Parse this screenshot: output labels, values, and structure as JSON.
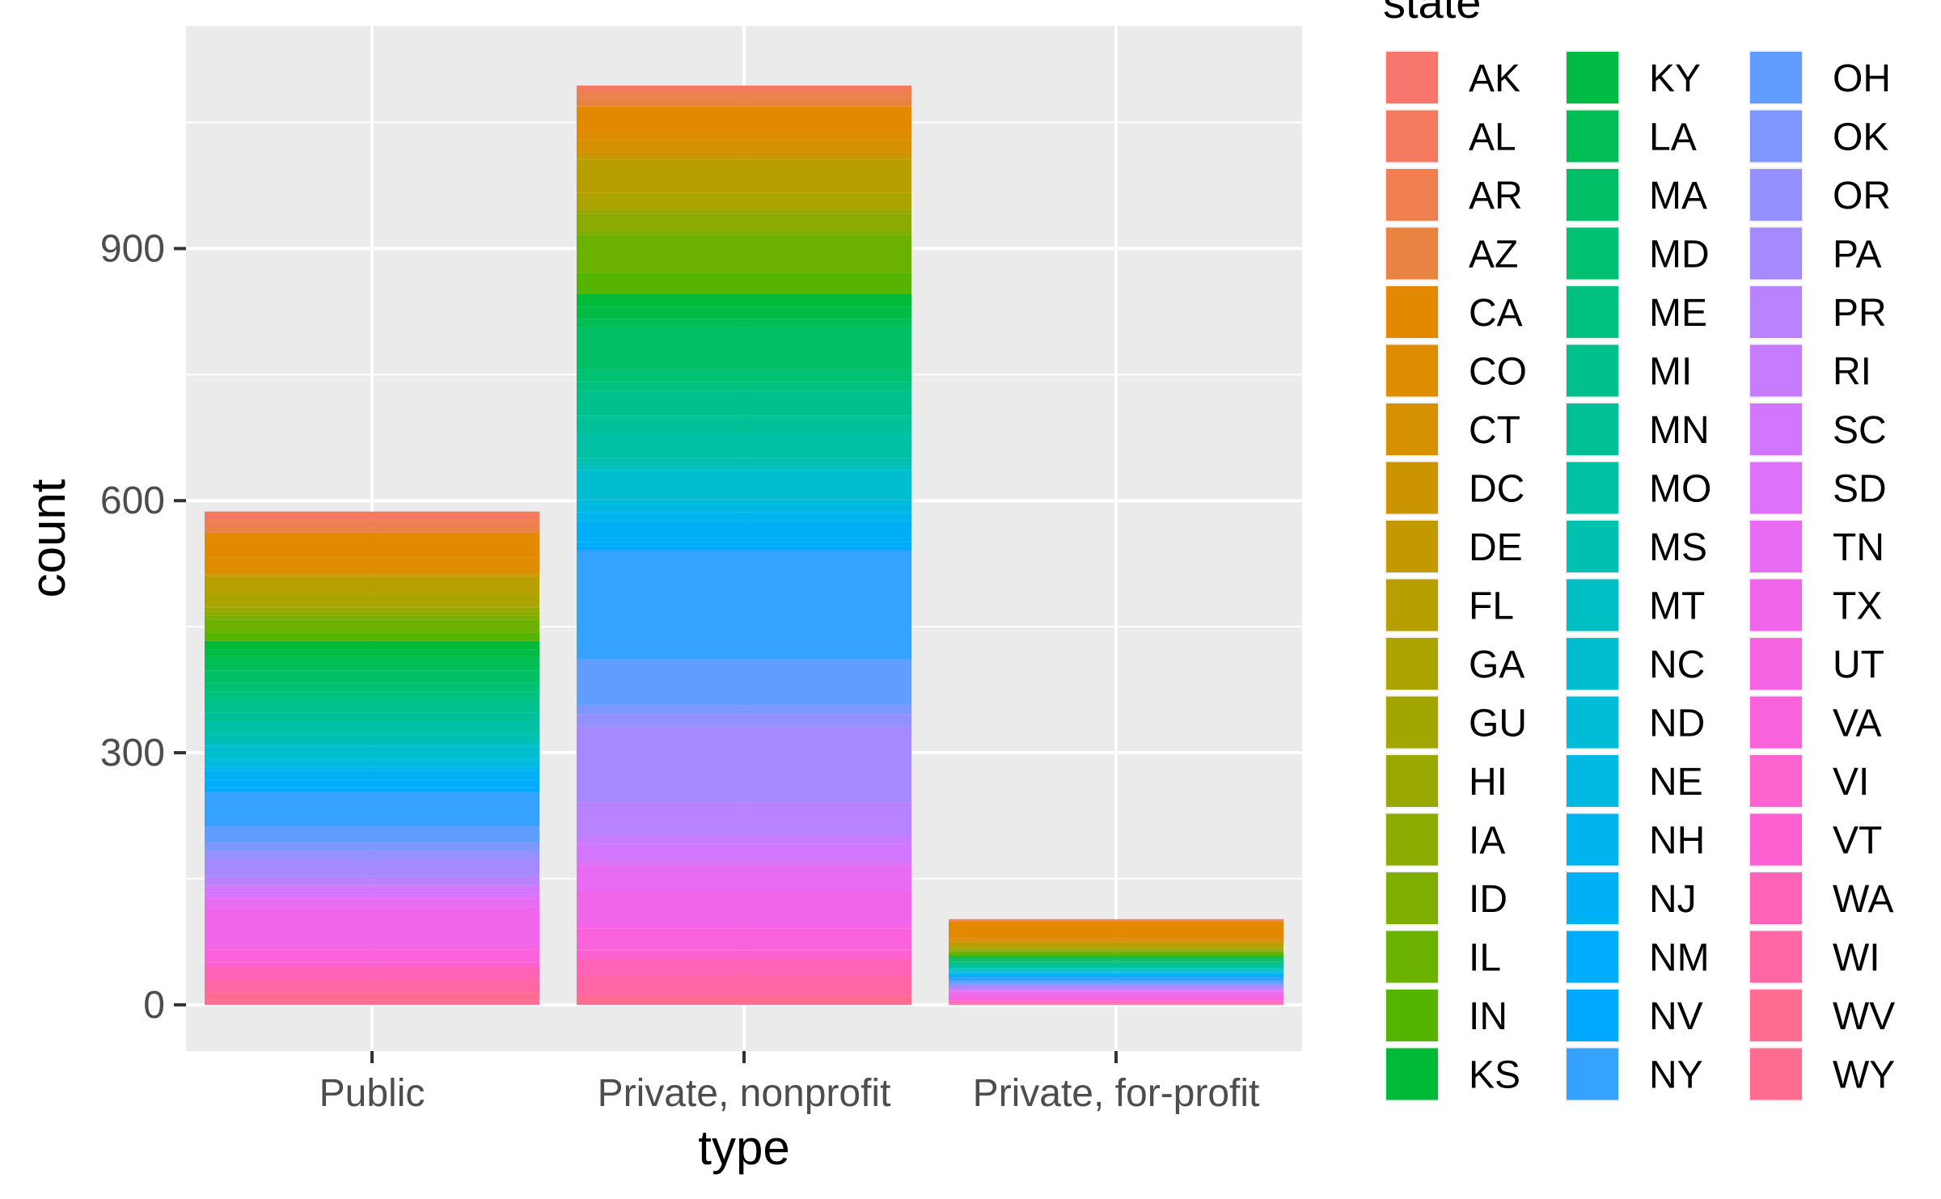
{
  "chart_data": {
    "type": "bar",
    "stacked": true,
    "xlabel": "type",
    "ylabel": "count",
    "categories": [
      "Public",
      "Private, nonprofit",
      "Private, for-profit"
    ],
    "ylim": [
      -55,
      1165
    ],
    "yticks": [
      0,
      300,
      600,
      900
    ],
    "grid": true,
    "legend": {
      "title": "state",
      "position": "right",
      "columns": 3
    },
    "panel_background": "#EBEBEB",
    "gridline_color": "#FFFFFF",
    "series": [
      {
        "name": "AK",
        "color": "#F8766D",
        "values": [
          0,
          0,
          0
        ]
      },
      {
        "name": "AL",
        "color": "#F47A5F",
        "values": [
          10,
          5,
          1
        ]
      },
      {
        "name": "AR",
        "color": "#EF7E51",
        "values": [
          10,
          10,
          1
        ]
      },
      {
        "name": "AZ",
        "color": "#E98342",
        "values": [
          5,
          10,
          1
        ]
      },
      {
        "name": "CA",
        "color": "#E38900",
        "values": [
          30,
          30,
          20
        ]
      },
      {
        "name": "CO",
        "color": "#DE8C00",
        "values": [
          15,
          10,
          3
        ]
      },
      {
        "name": "CT",
        "color": "#D59100",
        "values": [
          5,
          15,
          1
        ]
      },
      {
        "name": "DC",
        "color": "#CC9500",
        "values": [
          1,
          5,
          1
        ]
      },
      {
        "name": "DE",
        "color": "#C29A00",
        "values": [
          2,
          3,
          0
        ]
      },
      {
        "name": "FL",
        "color": "#B79F00",
        "values": [
          20,
          40,
          5
        ]
      },
      {
        "name": "GA",
        "color": "#ABA300",
        "values": [
          15,
          20,
          2
        ]
      },
      {
        "name": "GU",
        "color": "#A3A500",
        "values": [
          1,
          0,
          0
        ]
      },
      {
        "name": "HI",
        "color": "#98A800",
        "values": [
          5,
          5,
          1
        ]
      },
      {
        "name": "IA",
        "color": "#8BAB00",
        "values": [
          5,
          20,
          2
        ]
      },
      {
        "name": "ID",
        "color": "#7DAE00",
        "values": [
          5,
          5,
          1
        ]
      },
      {
        "name": "IL",
        "color": "#6BB100",
        "values": [
          15,
          45,
          3
        ]
      },
      {
        "name": "IN",
        "color": "#55B400",
        "values": [
          10,
          25,
          2
        ]
      },
      {
        "name": "KS",
        "color": "#00BA38",
        "values": [
          10,
          15,
          1
        ]
      },
      {
        "name": "KY",
        "color": "#00BC45",
        "values": [
          10,
          15,
          1
        ]
      },
      {
        "name": "LA",
        "color": "#00BE55",
        "values": [
          15,
          10,
          2
        ]
      },
      {
        "name": "MA",
        "color": "#00BF65",
        "values": [
          15,
          50,
          2
        ]
      },
      {
        "name": "MD",
        "color": "#00C072",
        "values": [
          10,
          15,
          1
        ]
      },
      {
        "name": "ME",
        "color": "#00C17F",
        "values": [
          10,
          10,
          1
        ]
      },
      {
        "name": "MI",
        "color": "#00C08B",
        "values": [
          15,
          30,
          2
        ]
      },
      {
        "name": "MN",
        "color": "#00C097",
        "values": [
          10,
          20,
          2
        ]
      },
      {
        "name": "MO",
        "color": "#00C1A3",
        "values": [
          15,
          30,
          2
        ]
      },
      {
        "name": "MS",
        "color": "#00C0AF",
        "values": [
          10,
          10,
          1
        ]
      },
      {
        "name": "MT",
        "color": "#00BFC4",
        "values": [
          5,
          5,
          1
        ]
      },
      {
        "name": "NC",
        "color": "#00BDD0",
        "values": [
          15,
          35,
          2
        ]
      },
      {
        "name": "ND",
        "color": "#00BCD8",
        "values": [
          5,
          5,
          1
        ]
      },
      {
        "name": "NE",
        "color": "#00B9E3",
        "values": [
          5,
          10,
          1
        ]
      },
      {
        "name": "NH",
        "color": "#00B5EE",
        "values": [
          5,
          10,
          1
        ]
      },
      {
        "name": "NJ",
        "color": "#00B0F6",
        "values": [
          10,
          25,
          2
        ]
      },
      {
        "name": "NM",
        "color": "#00ACFC",
        "values": [
          10,
          5,
          1
        ]
      },
      {
        "name": "NV",
        "color": "#00A9FF",
        "values": [
          5,
          5,
          1
        ]
      },
      {
        "name": "NY",
        "color": "#35A2FF",
        "values": [
          40,
          130,
          5
        ]
      },
      {
        "name": "OH",
        "color": "#619CFF",
        "values": [
          20,
          55,
          3
        ]
      },
      {
        "name": "OK",
        "color": "#7E96FF",
        "values": [
          10,
          10,
          1
        ]
      },
      {
        "name": "OR",
        "color": "#9590FF",
        "values": [
          10,
          15,
          1
        ]
      },
      {
        "name": "PA",
        "color": "#A58AFF",
        "values": [
          20,
          90,
          3
        ]
      },
      {
        "name": "PR",
        "color": "#B983FF",
        "values": [
          10,
          40,
          2
        ]
      },
      {
        "name": "RI",
        "color": "#C77CFF",
        "values": [
          2,
          10,
          0
        ]
      },
      {
        "name": "SC",
        "color": "#D376FF",
        "values": [
          10,
          20,
          1
        ]
      },
      {
        "name": "SD",
        "color": "#DD71FA",
        "values": [
          5,
          5,
          1
        ]
      },
      {
        "name": "TN",
        "color": "#E76BF3",
        "values": [
          10,
          30,
          2
        ]
      },
      {
        "name": "TX",
        "color": "#F066EA",
        "values": [
          45,
          40,
          5
        ]
      },
      {
        "name": "UT",
        "color": "#F564E3",
        "values": [
          5,
          5,
          1
        ]
      },
      {
        "name": "VA",
        "color": "#FA62DB",
        "values": [
          15,
          25,
          3
        ]
      },
      {
        "name": "VI",
        "color": "#FC63CF",
        "values": [
          1,
          1,
          0
        ]
      },
      {
        "name": "VT",
        "color": "#FD61D1",
        "values": [
          5,
          10,
          1
        ]
      },
      {
        "name": "WA",
        "color": "#FF63B6",
        "values": [
          15,
          20,
          2
        ]
      },
      {
        "name": "WI",
        "color": "#FF67A4",
        "values": [
          15,
          25,
          1
        ]
      },
      {
        "name": "WV",
        "color": "#FF6C91",
        "values": [
          10,
          10,
          1
        ]
      },
      {
        "name": "WY",
        "color": "#FF6C91",
        "values": [
          5,
          0,
          0
        ]
      }
    ]
  }
}
